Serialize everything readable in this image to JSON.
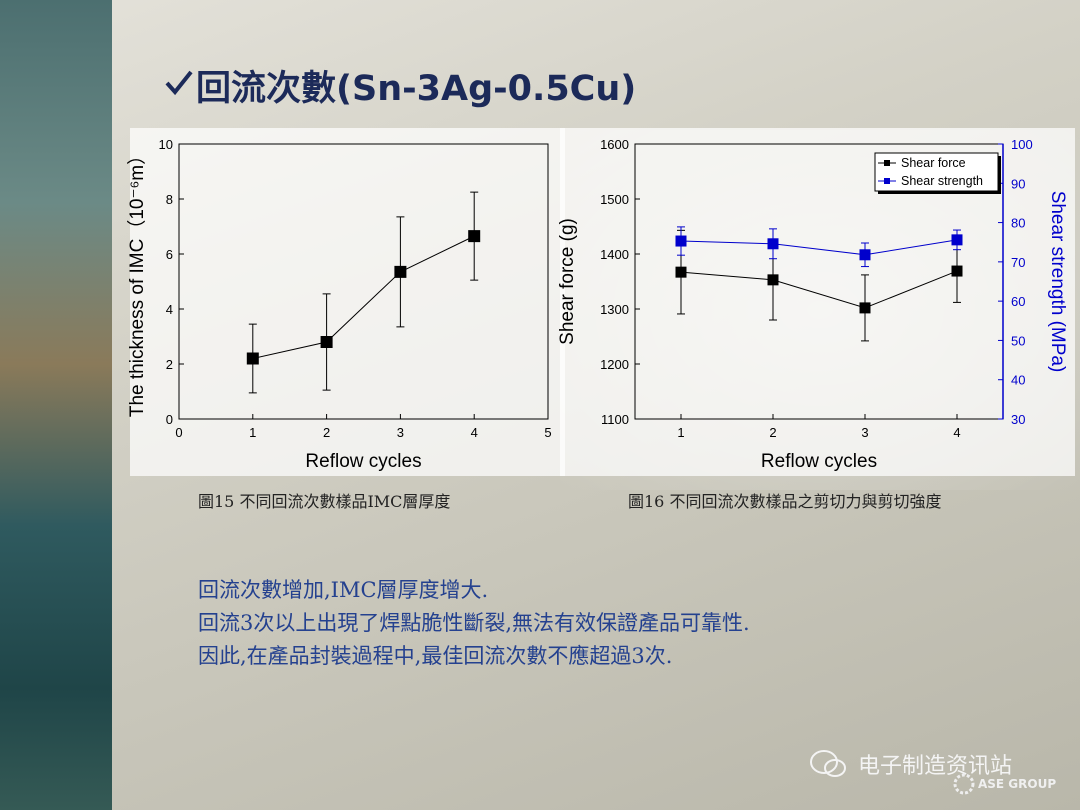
{
  "title": "回流次數(Sn-3Ag-0.5Cu)",
  "chart_data": [
    {
      "type": "line",
      "xlabel": "Reflow cycles",
      "ylabel": "The thickness of IMC（10⁻⁶m）",
      "x": [
        1,
        2,
        3,
        4
      ],
      "values": [
        2.2,
        2.8,
        5.35,
        6.65
      ],
      "errors": [
        1.25,
        1.75,
        2.0,
        1.6
      ],
      "color": "#000000",
      "xlim": [
        0,
        5
      ],
      "xticks": [
        0,
        1,
        2,
        3,
        4,
        5
      ],
      "ylim": [
        0,
        10
      ],
      "yticks": [
        0,
        2,
        4,
        6,
        8,
        10
      ]
    },
    {
      "type": "line",
      "xlabel": "Reflow cycles",
      "ylabel": "Shear force (g)",
      "y2label": "Shear strength (MPa)",
      "x": [
        1,
        2,
        3,
        4
      ],
      "series": [
        {
          "name": "Shear force",
          "color": "#000000",
          "values": [
            1367,
            1353,
            1302,
            1369
          ],
          "errors": [
            76,
            73,
            60,
            57
          ]
        },
        {
          "name": "Shear strength",
          "color": "#0000cc",
          "axis": "y2",
          "values": [
            75.3,
            74.6,
            71.8,
            75.6
          ],
          "errors": [
            3.6,
            3.8,
            3.0,
            2.5
          ]
        }
      ],
      "xlim": [
        0.5,
        4.5
      ],
      "xticks": [
        1,
        2,
        3,
        4
      ],
      "ylim": [
        1100,
        1600
      ],
      "yticks": [
        1100,
        1200,
        1300,
        1400,
        1500,
        1600
      ],
      "y2lim": [
        30,
        100
      ],
      "y2ticks": [
        30,
        40,
        50,
        60,
        70,
        80,
        90,
        100
      ],
      "y2color": "#0000cc",
      "legend": "upper right"
    }
  ],
  "captions": [
    "圖15 不同回流次數樣品IMC層厚度",
    "圖16 不同回流次數樣品之剪切力與剪切強度"
  ],
  "body": [
    "回流次數增加,IMC層厚度增大.",
    "回流3次以上出現了焊點脆性斷裂,無法有效保證產品可靠性.",
    "因此,在產品封裝過程中,最佳回流次數不應超過3次."
  ],
  "watermark": "电子制造资讯站",
  "logo": "ASE GROUP"
}
